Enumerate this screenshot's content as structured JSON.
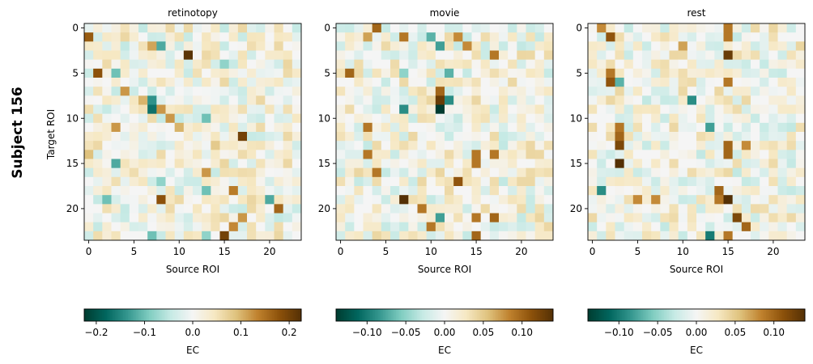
{
  "figure": {
    "row_label": "Subject 156"
  },
  "chart_data": [
    {
      "type": "heatmap",
      "title": "retinotopy",
      "xlabel": "Source ROI",
      "ylabel": "Target ROI",
      "x_ticks": [
        0,
        5,
        10,
        15,
        20
      ],
      "y_ticks": [
        0,
        5,
        10,
        15,
        20
      ],
      "n_rois": 24,
      "colormap": "BrBG_r",
      "colorbar": {
        "label": "EC",
        "vmin": -0.225,
        "vmax": 0.225,
        "ticks": [
          -0.2,
          -0.1,
          0.0,
          0.1,
          0.2
        ],
        "tick_labels": [
          "−0.2",
          "−0.1",
          "0.0",
          "0.1",
          "0.2"
        ]
      },
      "seed": 156,
      "strong_cells": [
        [
          1,
          0,
          0.17
        ],
        [
          2,
          8,
          -0.12
        ],
        [
          2,
          7,
          0.11
        ],
        [
          3,
          11,
          0.22
        ],
        [
          4,
          15,
          -0.08
        ],
        [
          5,
          1,
          0.18
        ],
        [
          5,
          3,
          -0.1
        ],
        [
          7,
          4,
          0.12
        ],
        [
          8,
          7,
          -0.14
        ],
        [
          8,
          6,
          0.1
        ],
        [
          9,
          7,
          -0.17
        ],
        [
          9,
          8,
          0.12
        ],
        [
          10,
          9,
          0.12
        ],
        [
          10,
          13,
          -0.1
        ],
        [
          11,
          3,
          0.12
        ],
        [
          11,
          10,
          0.1
        ],
        [
          12,
          17,
          0.2
        ],
        [
          13,
          14,
          0.08
        ],
        [
          14,
          0,
          0.09
        ],
        [
          15,
          3,
          -0.12
        ],
        [
          16,
          13,
          0.12
        ],
        [
          17,
          8,
          -0.08
        ],
        [
          18,
          13,
          -0.1
        ],
        [
          18,
          16,
          0.14
        ],
        [
          19,
          2,
          -0.1
        ],
        [
          19,
          8,
          0.18
        ],
        [
          19,
          20,
          -0.12
        ],
        [
          20,
          21,
          0.16
        ],
        [
          21,
          17,
          0.12
        ],
        [
          22,
          16,
          0.13
        ],
        [
          23,
          7,
          -0.1
        ],
        [
          23,
          13,
          -0.08
        ],
        [
          23,
          15,
          0.2
        ]
      ]
    },
    {
      "type": "heatmap",
      "title": "movie",
      "xlabel": "Source ROI",
      "ylabel": "",
      "x_ticks": [
        0,
        5,
        10,
        15,
        20
      ],
      "y_ticks": [
        0,
        5,
        10,
        15,
        20
      ],
      "n_rois": 24,
      "colormap": "BrBG_r",
      "colorbar": {
        "label": "EC",
        "vmin": -0.14,
        "vmax": 0.14,
        "ticks": [
          -0.1,
          -0.05,
          0.0,
          0.05,
          0.1
        ],
        "tick_labels": [
          "−0.10",
          "−0.05",
          "0.00",
          "0.05",
          "0.10"
        ]
      },
      "seed": 2156,
      "strong_cells": [
        [
          0,
          4,
          0.1
        ],
        [
          1,
          3,
          0.07
        ],
        [
          1,
          7,
          0.09
        ],
        [
          1,
          10,
          -0.07
        ],
        [
          1,
          13,
          0.08
        ],
        [
          2,
          11,
          -0.08
        ],
        [
          2,
          14,
          0.08
        ],
        [
          3,
          17,
          0.09
        ],
        [
          5,
          1,
          0.1
        ],
        [
          5,
          7,
          -0.05
        ],
        [
          5,
          12,
          -0.07
        ],
        [
          7,
          11,
          0.1
        ],
        [
          8,
          11,
          0.13
        ],
        [
          8,
          12,
          -0.09
        ],
        [
          9,
          11,
          -0.14
        ],
        [
          9,
          7,
          -0.09
        ],
        [
          11,
          3,
          0.09
        ],
        [
          14,
          3,
          0.09
        ],
        [
          14,
          15,
          0.09
        ],
        [
          14,
          17,
          0.09
        ],
        [
          15,
          15,
          0.09
        ],
        [
          16,
          4,
          0.09
        ],
        [
          17,
          13,
          0.11
        ],
        [
          19,
          7,
          0.14
        ],
        [
          20,
          9,
          0.09
        ],
        [
          21,
          11,
          -0.08
        ],
        [
          21,
          15,
          0.09
        ],
        [
          21,
          17,
          0.1
        ],
        [
          22,
          10,
          0.09
        ],
        [
          23,
          15,
          0.1
        ]
      ]
    },
    {
      "type": "heatmap",
      "title": "rest",
      "xlabel": "Source ROI",
      "ylabel": "",
      "x_ticks": [
        0,
        5,
        10,
        15,
        20
      ],
      "y_ticks": [
        0,
        5,
        10,
        15,
        20
      ],
      "n_rois": 24,
      "colormap": "BrBG_r",
      "colorbar": {
        "label": "EC",
        "vmin": -0.14,
        "vmax": 0.14,
        "ticks": [
          -0.1,
          -0.05,
          0.0,
          0.05,
          0.1
        ],
        "tick_labels": [
          "−0.10",
          "−0.05",
          "0.00",
          "0.05",
          "0.10"
        ]
      },
      "seed": 3156,
      "strong_cells": [
        [
          0,
          1,
          0.08
        ],
        [
          0,
          15,
          0.09
        ],
        [
          1,
          2,
          0.11
        ],
        [
          1,
          15,
          0.09
        ],
        [
          2,
          10,
          0.07
        ],
        [
          3,
          15,
          0.13
        ],
        [
          5,
          2,
          0.09
        ],
        [
          6,
          2,
          0.11
        ],
        [
          6,
          3,
          -0.07
        ],
        [
          6,
          15,
          0.09
        ],
        [
          8,
          11,
          -0.09
        ],
        [
          11,
          3,
          0.09
        ],
        [
          11,
          13,
          -0.08
        ],
        [
          12,
          3,
          0.1
        ],
        [
          13,
          3,
          0.12
        ],
        [
          13,
          15,
          0.1
        ],
        [
          13,
          17,
          0.08
        ],
        [
          14,
          15,
          0.1
        ],
        [
          15,
          3,
          0.14
        ],
        [
          18,
          1,
          -0.09
        ],
        [
          18,
          14,
          0.1
        ],
        [
          19,
          5,
          0.08
        ],
        [
          19,
          7,
          0.08
        ],
        [
          19,
          14,
          0.09
        ],
        [
          19,
          15,
          0.14
        ],
        [
          21,
          16,
          0.12
        ],
        [
          22,
          17,
          0.1
        ],
        [
          23,
          13,
          -0.1
        ],
        [
          23,
          15,
          0.09
        ]
      ]
    }
  ]
}
